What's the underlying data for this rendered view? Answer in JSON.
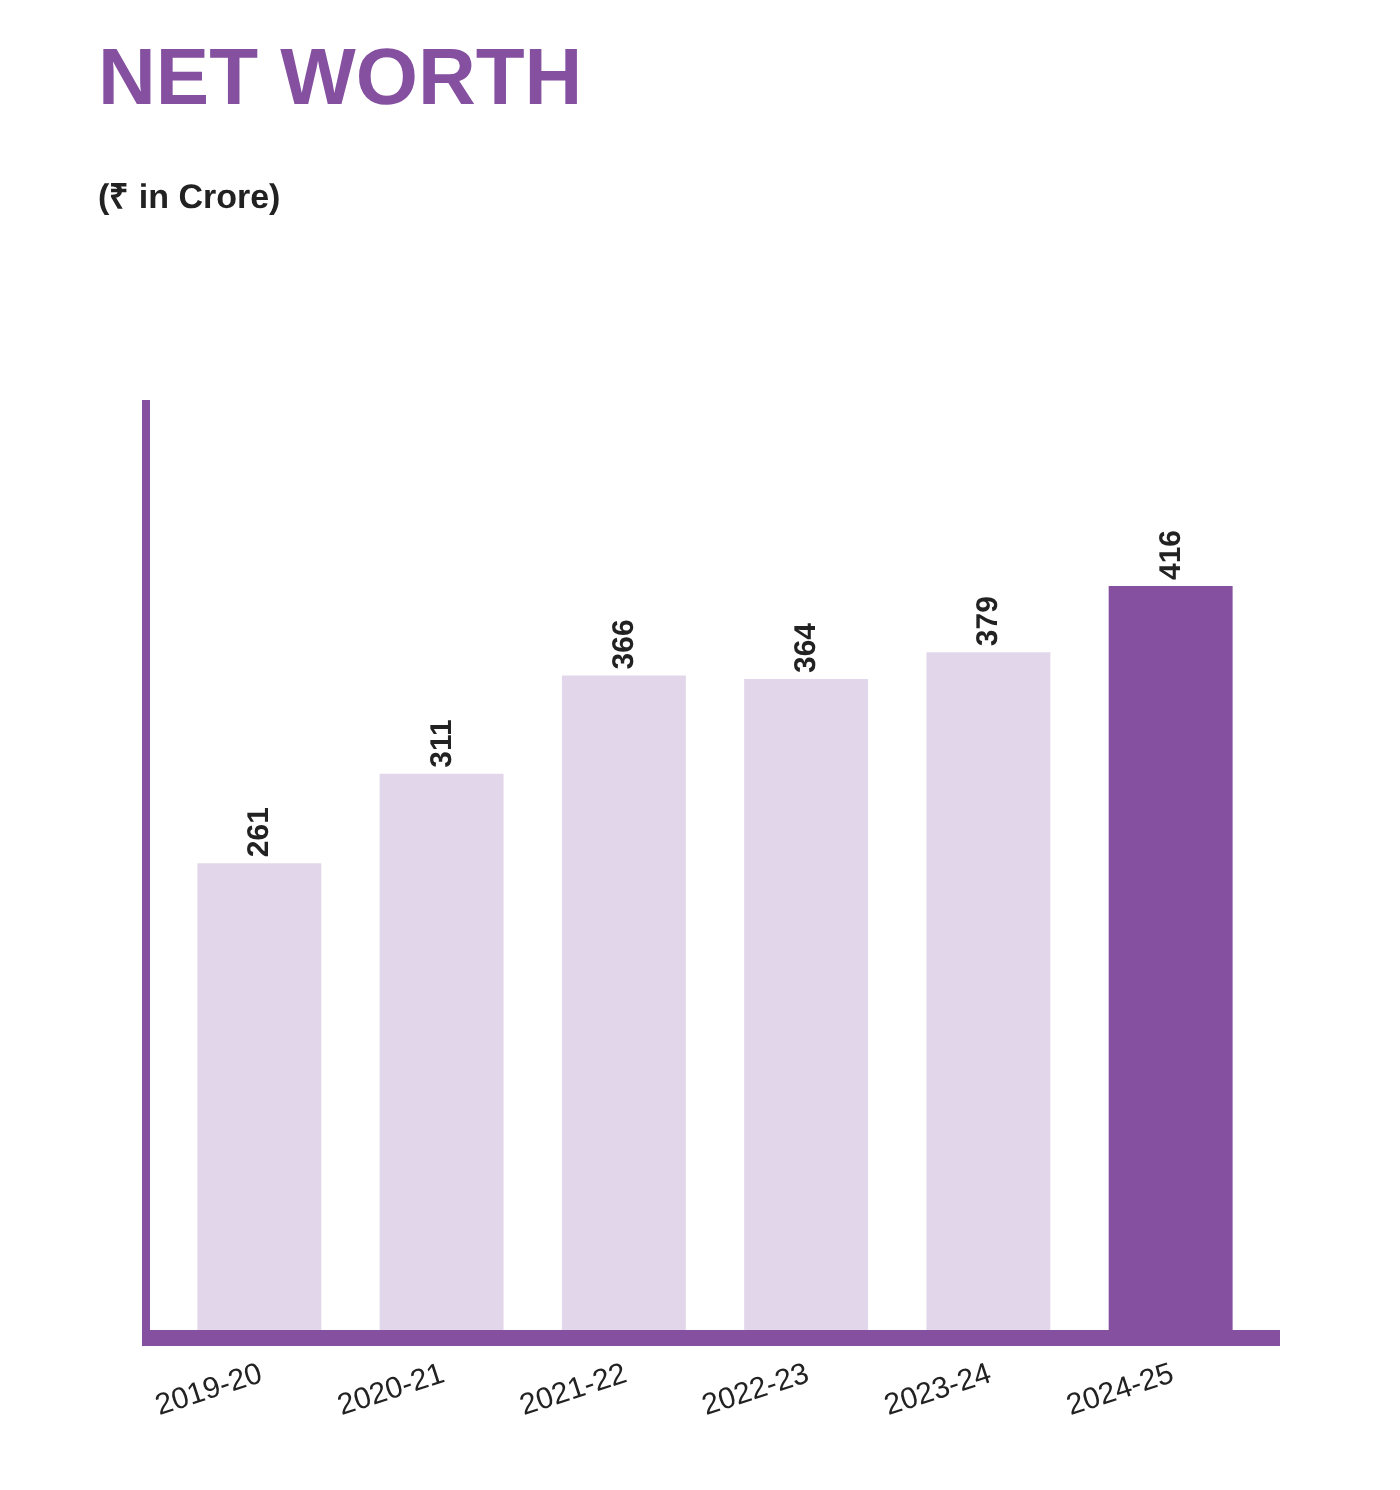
{
  "chart_data": {
    "type": "bar",
    "title": "NET WORTH",
    "subtitle": "(₹ in Crore)",
    "categories": [
      "2019-20",
      "2020-21",
      "2021-22",
      "2022-23",
      "2023-24",
      "2024-25"
    ],
    "values": [
      261,
      311,
      366,
      364,
      379,
      416
    ],
    "colors": [
      "#e2d7ea",
      "#e2d7ea",
      "#e2d7ea",
      "#e2d7ea",
      "#e2d7ea",
      "#8550a0"
    ],
    "data_labels": true
  }
}
